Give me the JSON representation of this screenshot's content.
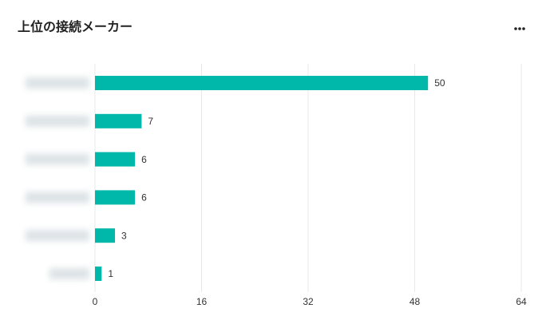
{
  "chart_data": {
    "type": "bar",
    "orientation": "horizontal",
    "title": "上位の接続メーカー",
    "categories": [
      null,
      null,
      null,
      null,
      null,
      null
    ],
    "values": [
      50,
      7,
      6,
      6,
      3,
      1
    ],
    "color": "#00b8a9",
    "xlim": [
      0,
      64
    ],
    "xticks": [
      0,
      16,
      32,
      48,
      64
    ],
    "grid": true
  }
}
